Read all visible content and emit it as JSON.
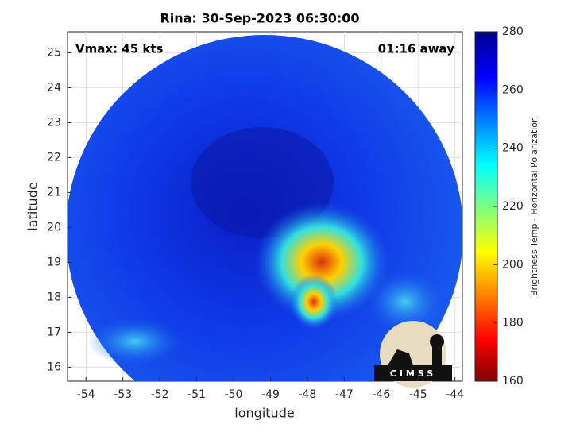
{
  "chart_data": {
    "type": "image",
    "title": "Rina: 30-Sep-2023 06:30:00",
    "x_label": "longitude",
    "y_label": "latitude",
    "annotations": [
      "Vmax: 45 kts",
      "01:16 away"
    ],
    "logo_text": "CIMSS",
    "xlim": [
      -54.5,
      -43.8
    ],
    "xticks": [
      -54,
      -53,
      -52,
      -51,
      -50,
      -49,
      -48,
      -47,
      -46,
      -45,
      -44
    ],
    "ylim": [
      15.6,
      25.6
    ],
    "yticks": [
      16,
      17,
      18,
      19,
      20,
      21,
      22,
      23,
      24,
      25
    ],
    "grid": true,
    "colorbar": {
      "label": "Brightness Temp - Horizontal Polarization",
      "clim": [
        160,
        280
      ],
      "ticks": [
        160,
        180,
        200,
        220,
        240,
        260,
        280
      ]
    }
  }
}
